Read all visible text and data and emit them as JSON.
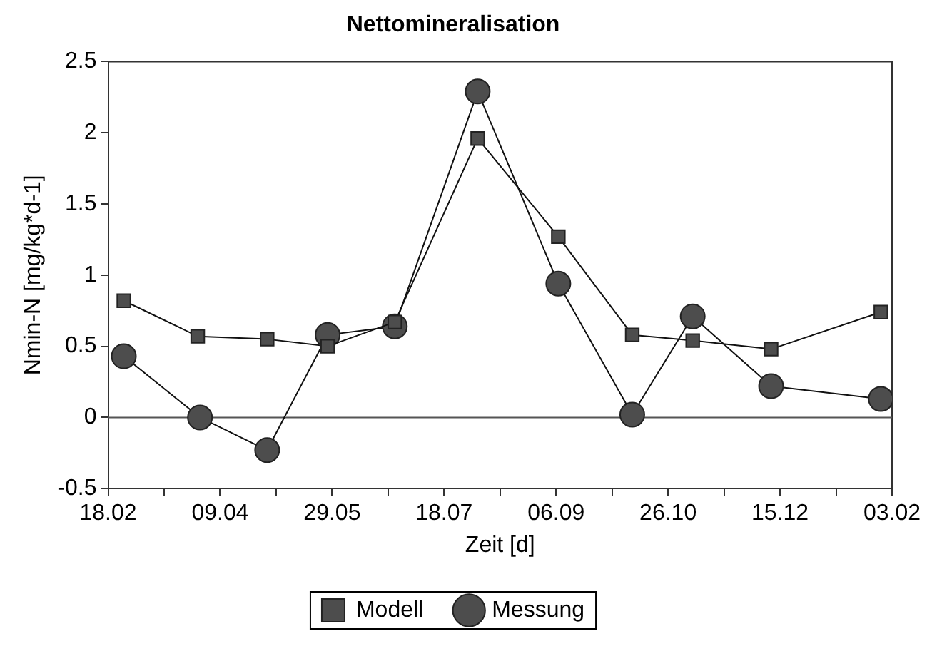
{
  "chart_data": {
    "type": "line",
    "title": "Nettomineralisation",
    "xlabel": "Zeit [d]",
    "ylabel": "Nmin-N [mg/kg*d-1]",
    "xlim": [
      "2001-02-18",
      "2002-02-03"
    ],
    "xticks": [
      {
        "value": "2001-02-18",
        "label": "18.02"
      },
      {
        "value": "2001-03-15",
        "label": null
      },
      {
        "value": "2001-04-09",
        "label": "09.04"
      },
      {
        "value": "2001-05-04",
        "label": null
      },
      {
        "value": "2001-05-29",
        "label": "29.05"
      },
      {
        "value": "2001-06-23",
        "label": null
      },
      {
        "value": "2001-07-18",
        "label": "18.07"
      },
      {
        "value": "2001-08-12",
        "label": null
      },
      {
        "value": "2001-09-06",
        "label": "06.09"
      },
      {
        "value": "2001-10-01",
        "label": null
      },
      {
        "value": "2001-10-26",
        "label": "26.10"
      },
      {
        "value": "2001-11-20",
        "label": null
      },
      {
        "value": "2001-12-15",
        "label": "15.12"
      },
      {
        "value": "2002-01-09",
        "label": null
      },
      {
        "value": "2002-02-03",
        "label": "03.02"
      }
    ],
    "ylim": [
      -0.5,
      2.5
    ],
    "yticks": [
      -0.5,
      0,
      0.5,
      1,
      1.5,
      2,
      2.5
    ],
    "grid": false,
    "legend": "bottom",
    "line_style": "solid",
    "ref_lines": [
      {
        "axis": "y",
        "value": 0,
        "label": null,
        "color": "#555555"
      }
    ],
    "series": [
      {
        "name": "Modell",
        "color": "#4d4d4d",
        "marker": "square",
        "x": [
          "2001-02-25",
          "2001-03-30",
          "2001-04-30",
          "2001-05-27",
          "2001-06-26",
          "2001-08-02",
          "2001-09-07",
          "2001-10-10",
          "2001-11-06",
          "2001-12-11",
          "2002-01-29"
        ],
        "values": [
          0.82,
          0.57,
          0.55,
          0.5,
          0.67,
          1.96,
          1.27,
          0.58,
          0.54,
          0.48,
          0.74
        ]
      },
      {
        "name": "Messung",
        "color": "#4d4d4d",
        "marker": "circle",
        "x": [
          "2001-02-25",
          "2001-03-31",
          "2001-04-30",
          "2001-05-27",
          "2001-06-26",
          "2001-08-02",
          "2001-09-07",
          "2001-10-10",
          "2001-11-06",
          "2001-12-11",
          "2002-01-29"
        ],
        "values": [
          0.43,
          0,
          -0.23,
          0.58,
          0.64,
          2.29,
          0.94,
          0.02,
          0.71,
          0.22,
          0.13
        ]
      }
    ]
  }
}
